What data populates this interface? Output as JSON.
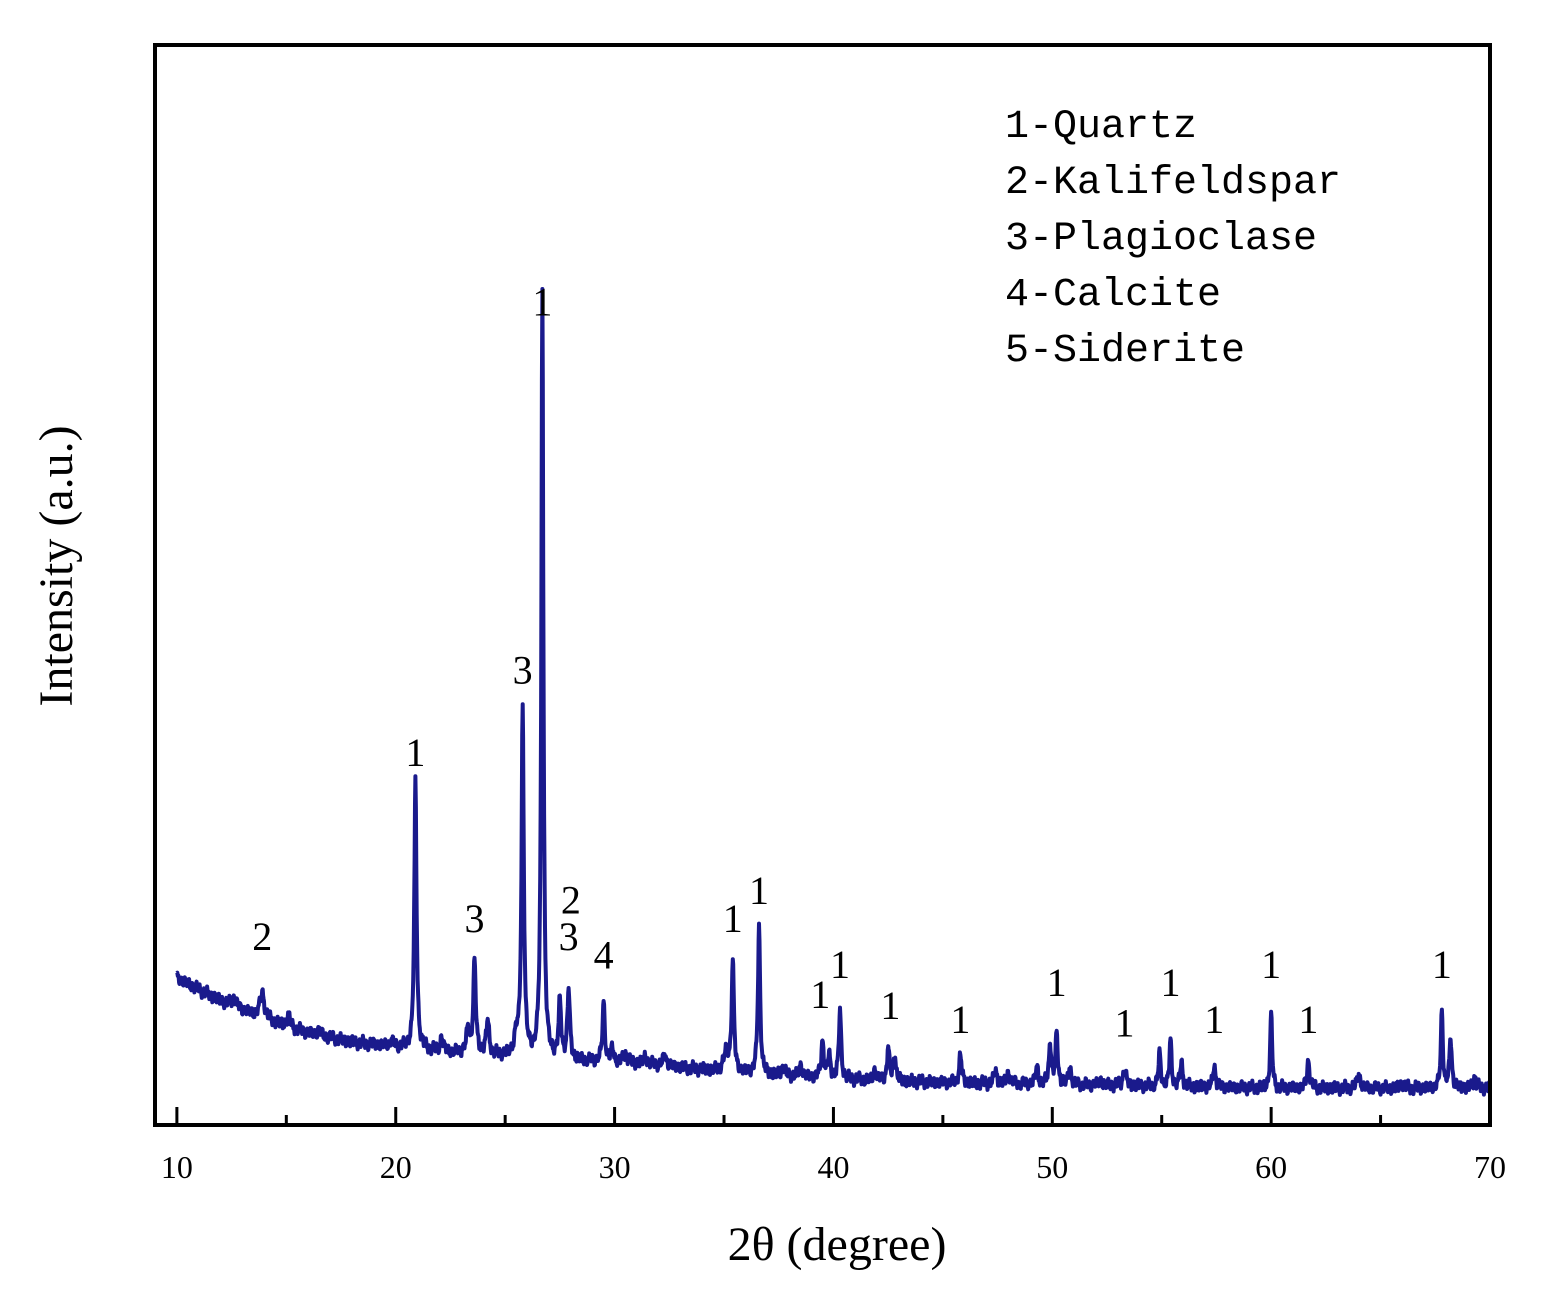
{
  "chart_data": {
    "type": "line",
    "xlabel": "2θ (degree)",
    "ylabel": "Intensity (a.u.)",
    "xlim": [
      9,
      70
    ],
    "ylim": [
      0,
      100
    ],
    "x_ticks": [
      "10",
      "20",
      "30",
      "40",
      "50",
      "60",
      "70"
    ],
    "x_tick_values": [
      10,
      20,
      30,
      40,
      50,
      60,
      70
    ],
    "grid": false,
    "legend_position": "top-right",
    "line_color": "#1a1a8c",
    "legend": [
      "1-Quartz",
      "2-Kalifeldspar",
      "3-Plagioclase",
      "4-Calcite",
      "5-Siderite"
    ],
    "series": [
      {
        "baseline": [
          [
            10,
            16
          ],
          [
            12,
            13.5
          ],
          [
            14,
            11.5
          ],
          [
            16,
            10
          ],
          [
            18,
            9
          ],
          [
            20,
            8.5
          ],
          [
            22,
            8
          ],
          [
            24,
            7.6
          ],
          [
            26,
            7.3
          ],
          [
            28,
            7
          ],
          [
            30,
            6.8
          ],
          [
            32,
            6.5
          ],
          [
            34,
            6
          ],
          [
            36,
            5.6
          ],
          [
            40,
            5
          ],
          [
            45,
            4.6
          ],
          [
            50,
            4.4
          ],
          [
            55,
            4.2
          ],
          [
            60,
            4
          ],
          [
            65,
            4
          ],
          [
            70,
            4
          ]
        ],
        "peaks": [
          [
            12.6,
            1,
            0.15
          ],
          [
            13.9,
            2.8,
            0.18
          ],
          [
            15.1,
            1.2,
            0.12
          ],
          [
            16.5,
            0.6,
            0.12
          ],
          [
            19.8,
            0.6,
            0.12
          ],
          [
            20.9,
            29,
            0.09
          ],
          [
            22.1,
            1.6,
            0.1
          ],
          [
            23.3,
            2.5,
            0.12
          ],
          [
            23.6,
            10,
            0.1
          ],
          [
            24.2,
            3.6,
            0.12
          ],
          [
            25.5,
            2,
            0.15
          ],
          [
            25.8,
            38,
            0.09
          ],
          [
            26.7,
            84,
            0.08
          ],
          [
            27.5,
            6,
            0.1
          ],
          [
            27.9,
            7.5,
            0.1
          ],
          [
            29.5,
            6.5,
            0.09
          ],
          [
            29.9,
            1.5,
            0.1
          ],
          [
            30.5,
            1,
            0.15
          ],
          [
            31.4,
            0.8,
            0.15
          ],
          [
            32.3,
            1.2,
            0.12
          ],
          [
            35.1,
            2,
            0.2
          ],
          [
            35.4,
            12,
            0.09
          ],
          [
            36.6,
            16,
            0.09
          ],
          [
            37.7,
            1,
            0.12
          ],
          [
            38.5,
            1.2,
            0.12
          ],
          [
            39.5,
            4,
            0.1
          ],
          [
            39.8,
            2.5,
            0.1
          ],
          [
            40.3,
            7.5,
            0.09
          ],
          [
            41.9,
            1.2,
            0.1
          ],
          [
            42.5,
            3.6,
            0.09
          ],
          [
            42.8,
            3,
            0.09
          ],
          [
            45.8,
            3,
            0.1
          ],
          [
            47.4,
            1.5,
            0.1
          ],
          [
            48.0,
            1.2,
            0.12
          ],
          [
            49.3,
            1.8,
            0.1
          ],
          [
            49.9,
            4.6,
            0.09
          ],
          [
            50.2,
            5.5,
            0.09
          ],
          [
            50.8,
            2,
            0.1
          ],
          [
            52.2,
            0.5,
            0.15
          ],
          [
            53.3,
            1.8,
            0.12
          ],
          [
            54.9,
            3.5,
            0.09
          ],
          [
            55.4,
            5,
            0.08
          ],
          [
            55.9,
            2.5,
            0.1
          ],
          [
            57.4,
            2.5,
            0.09
          ],
          [
            60.0,
            8,
            0.08
          ],
          [
            61.7,
            3,
            0.1
          ],
          [
            64.0,
            1.6,
            0.12
          ],
          [
            66.0,
            0.5,
            0.15
          ],
          [
            67.8,
            8.5,
            0.08
          ],
          [
            68.2,
            5.5,
            0.09
          ],
          [
            69.3,
            1.2,
            0.1
          ]
        ]
      }
    ],
    "peak_labels": [
      {
        "text": "2",
        "x": 13.9,
        "y": 19
      },
      {
        "text": "1",
        "x": 20.9,
        "y": 39
      },
      {
        "text": "3",
        "x": 23.6,
        "y": 21
      },
      {
        "text": "3",
        "x": 25.8,
        "y": 48
      },
      {
        "text": "1",
        "x": 26.7,
        "y": 88
      },
      {
        "text": "2",
        "x": 28.0,
        "y": 23
      },
      {
        "text": "3",
        "x": 27.9,
        "y": 19
      },
      {
        "text": "4",
        "x": 29.5,
        "y": 17
      },
      {
        "text": "1",
        "x": 35.4,
        "y": 21
      },
      {
        "text": "1",
        "x": 36.6,
        "y": 24
      },
      {
        "text": "1",
        "x": 39.4,
        "y": 12.7
      },
      {
        "text": "1",
        "x": 40.3,
        "y": 16
      },
      {
        "text": "1",
        "x": 42.6,
        "y": 11.5
      },
      {
        "text": "1",
        "x": 45.8,
        "y": 10
      },
      {
        "text": "1",
        "x": 50.2,
        "y": 14
      },
      {
        "text": "1",
        "x": 53.3,
        "y": 9.6
      },
      {
        "text": "1",
        "x": 55.4,
        "y": 14
      },
      {
        "text": "1",
        "x": 57.4,
        "y": 10
      },
      {
        "text": "1",
        "x": 60.0,
        "y": 16
      },
      {
        "text": "1",
        "x": 61.7,
        "y": 10
      },
      {
        "text": "1",
        "x": 67.8,
        "y": 16
      }
    ]
  }
}
